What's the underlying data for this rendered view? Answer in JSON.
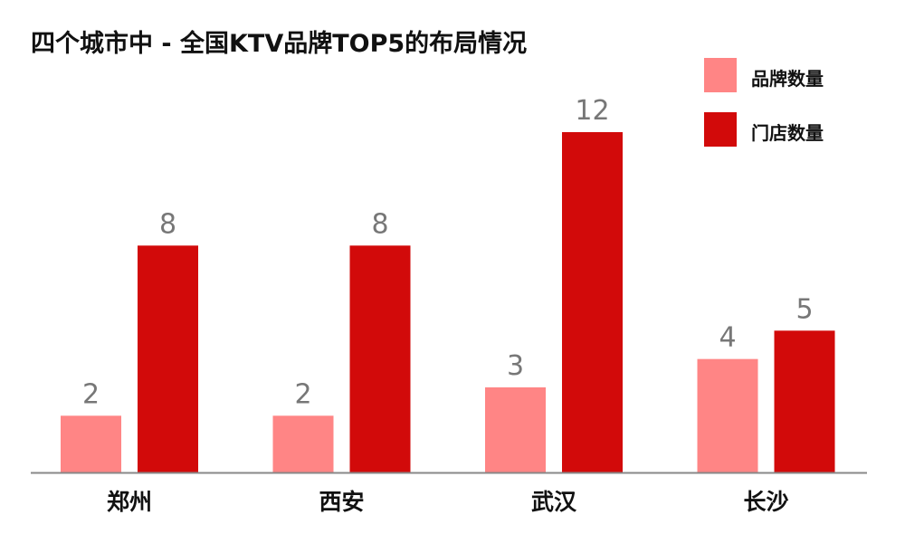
{
  "chart_data": {
    "type": "bar",
    "title": "四个城市中 - 全国KTV品牌TOP5的布局情况",
    "categories": [
      "郑州",
      "西安",
      "武汉",
      "长沙"
    ],
    "series": [
      {
        "name": "品牌数量",
        "values": [
          2,
          2,
          3,
          4
        ],
        "color": "#ff8585"
      },
      {
        "name": "门店数量",
        "values": [
          8,
          8,
          12,
          5
        ],
        "color": "#d20a0a"
      }
    ],
    "xlabel": "",
    "ylabel": "",
    "ylim": [
      0,
      12
    ],
    "grid": false,
    "legend_position": "top-right",
    "data_labels": true
  }
}
